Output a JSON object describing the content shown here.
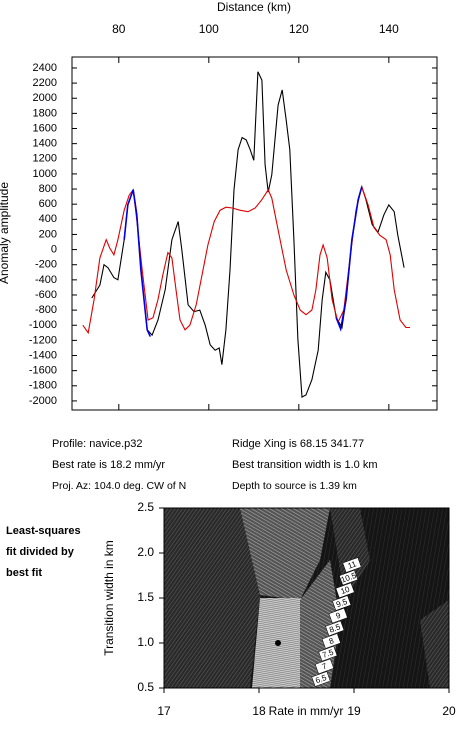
{
  "chart_data": [
    {
      "type": "line",
      "xlabel": "Distance (km)",
      "ylabel": "Anomaly amplitude",
      "xlim": [
        69.6,
        150.7
      ],
      "xticks": [
        80,
        100,
        120,
        140
      ],
      "ylim": [
        -2120,
        2545
      ],
      "yticks": [
        -2000,
        -1800,
        -1600,
        -1400,
        -1200,
        -1000,
        -800,
        -600,
        -400,
        -200,
        0,
        200,
        400,
        600,
        800,
        1000,
        1200,
        1400,
        1600,
        1800,
        2000,
        2200,
        2400
      ],
      "series": [
        {
          "color": "#000000",
          "x": [
            74.0,
            75.8,
            76.7,
            77.6,
            78.9,
            79.8,
            81.2,
            82.0,
            83.2,
            84.0,
            84.9,
            86.3,
            87.4,
            88.7,
            90.3,
            91.8,
            93.2,
            94.0,
            95.4,
            96.7,
            98.0,
            99.2,
            100.3,
            101.4,
            102.3,
            102.9,
            103.8,
            104.7,
            105.6,
            106.5,
            107.4,
            108.3,
            109.2,
            110.0,
            110.9,
            111.8,
            112.5,
            113.2,
            114.0,
            115.4,
            116.3,
            117.2,
            118.0,
            118.9,
            119.8,
            120.7,
            121.6,
            122.9,
            124.3,
            125.2,
            126.0,
            126.9,
            128.3,
            129.6,
            130.5,
            131.8,
            133.2,
            134.0,
            134.9,
            136.3,
            137.6,
            138.9,
            140.0,
            141.2,
            142.0,
            143.4
          ],
          "values": [
            -640,
            -470,
            -200,
            -240,
            -370,
            -400,
            130,
            590,
            790,
            460,
            -270,
            -1060,
            -1130,
            -930,
            -530,
            130,
            370,
            0,
            -730,
            -820,
            -800,
            -1000,
            -1260,
            -1330,
            -1300,
            -1520,
            -1060,
            -270,
            790,
            1320,
            1480,
            1450,
            1320,
            1180,
            2350,
            2240,
            1120,
            760,
            990,
            1910,
            2110,
            1710,
            1320,
            130,
            -1190,
            -1950,
            -1920,
            -1720,
            -1330,
            -660,
            -300,
            -400,
            -900,
            -1030,
            -660,
            130,
            660,
            830,
            660,
            330,
            230,
            460,
            590,
            500,
            190,
            -240
          ]
        },
        {
          "color": "#e00000",
          "x": [
            72.0,
            73.2,
            74.5,
            75.8,
            77.2,
            78.0,
            78.9,
            79.8,
            81.2,
            82.3,
            83.2,
            84.0,
            85.2,
            86.5,
            87.6,
            88.7,
            89.8,
            90.9,
            91.8,
            92.7,
            93.6,
            94.7,
            95.8,
            97.2,
            98.5,
            99.8,
            101.2,
            102.5,
            103.8,
            105.2,
            106.9,
            108.7,
            110.3,
            111.8,
            113.2,
            114.0,
            115.4,
            117.2,
            118.9,
            120.3,
            121.6,
            122.9,
            123.8,
            124.7,
            125.4,
            126.3,
            127.4,
            128.7,
            130.0,
            131.4,
            132.7,
            134.0,
            135.4,
            136.7,
            138.0,
            139.4,
            140.3,
            141.2,
            142.5,
            143.8,
            144.7
          ],
          "values": [
            -1000,
            -1100,
            -660,
            -110,
            130,
            20,
            -70,
            130,
            520,
            720,
            790,
            390,
            -270,
            -930,
            -900,
            -660,
            -330,
            -40,
            -110,
            -530,
            -930,
            -1060,
            -1000,
            -730,
            -330,
            60,
            370,
            520,
            560,
            550,
            520,
            500,
            550,
            660,
            790,
            680,
            260,
            -270,
            -600,
            -800,
            -860,
            -800,
            -530,
            -70,
            60,
            -110,
            -660,
            -960,
            -800,
            -110,
            520,
            830,
            590,
            290,
            190,
            130,
            -70,
            -530,
            -930,
            -1030,
            -1030
          ]
        },
        {
          "color": "#0000e0",
          "x": [
            81.2,
            82.0,
            83.2,
            84.0,
            84.9,
            86.3,
            87.0,
            null,
            128.3,
            129.3,
            130.5,
            131.8,
            133.2,
            134.0
          ],
          "values": [
            130,
            590,
            790,
            460,
            -270,
            -1060,
            -1150,
            null,
            -900,
            -1050,
            -660,
            130,
            660,
            830
          ]
        }
      ]
    },
    {
      "type": "contour",
      "xlabel": "Rate in mm/yr",
      "ylabel": "Transition width in km",
      "xlim": [
        17,
        20
      ],
      "xticks": [
        17,
        18,
        19,
        20
      ],
      "ylim": [
        0.5,
        2.5
      ],
      "yticks": [
        {
          "value": 0.5,
          "label": "0.5"
        },
        {
          "value": 1.0,
          "label": "1.0"
        },
        {
          "value": 1.5,
          "label": "1.5"
        },
        {
          "value": 2.0,
          "label": "2.0"
        },
        {
          "value": 2.5,
          "label": "2.5"
        }
      ],
      "best_fit": {
        "x": 18.2,
        "y": 1.0
      },
      "contour_levels": [
        6.5,
        7,
        7.5,
        8,
        8.5,
        9,
        9.5,
        10,
        10.5,
        11
      ],
      "annotation": [
        "Least-squares",
        "fit divided by",
        "best fit"
      ]
    }
  ],
  "info": {
    "profile": "Profile: navice.p32",
    "ridge": "Ridge Xing is 68.15 341.77",
    "rate": "Best rate is 18.2 mm/yr",
    "width": "Best transition width is 1.0 km",
    "azimuth": "Proj. Az: 104.0 deg. CW of N",
    "depth": "Depth to source is   1.39 km"
  }
}
